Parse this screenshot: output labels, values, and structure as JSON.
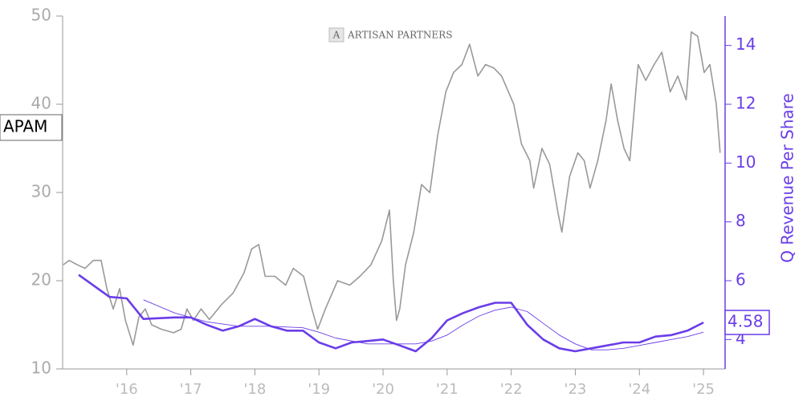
{
  "chart_data": {
    "type": "line",
    "ticker": "APAM",
    "watermark": "ARTISAN PARTNERS",
    "watermark_logo": "A",
    "y2label": "Q Revenue Per Share",
    "xlim": [
      2015.0,
      2025.3
    ],
    "xticks": [
      {
        "value": 2016,
        "label": "'16"
      },
      {
        "value": 2017,
        "label": "'17"
      },
      {
        "value": 2018,
        "label": "'18"
      },
      {
        "value": 2019,
        "label": "'19"
      },
      {
        "value": 2020,
        "label": "'20"
      },
      {
        "value": 2021,
        "label": "'21"
      },
      {
        "value": 2022,
        "label": "'22"
      },
      {
        "value": 2023,
        "label": "'23"
      },
      {
        "value": 2024,
        "label": "'24"
      },
      {
        "value": 2025,
        "label": "'25"
      }
    ],
    "ylim": [
      10,
      50
    ],
    "yticks": [
      10,
      20,
      30,
      40,
      50
    ],
    "y2lim": [
      3,
      15
    ],
    "y2ticks": [
      4,
      6,
      8,
      10,
      12,
      14
    ],
    "series": [
      {
        "color": "#999999",
        "linewidth": 1.6,
        "x": [
          2015.01,
          2015.1,
          2015.23,
          2015.35,
          2015.48,
          2015.6,
          2015.69,
          2015.79,
          2015.89,
          2015.98,
          2016.1,
          2016.19,
          2016.29,
          2016.39,
          2016.54,
          2016.73,
          2016.85,
          2016.94,
          2017.04,
          2017.16,
          2017.29,
          2017.48,
          2017.66,
          2017.83,
          2017.95,
          2018.06,
          2018.16,
          2018.31,
          2018.48,
          2018.6,
          2018.76,
          2018.89,
          2018.98,
          2019.1,
          2019.29,
          2019.48,
          2019.64,
          2019.81,
          2019.98,
          2020.1,
          2020.16,
          2020.21,
          2020.26,
          2020.35,
          2020.48,
          2020.6,
          2020.73,
          2020.85,
          2020.98,
          2021.1,
          2021.23,
          2021.35,
          2021.48,
          2021.6,
          2021.73,
          2021.85,
          2022.04,
          2022.16,
          2022.29,
          2022.35,
          2022.48,
          2022.6,
          2022.73,
          2022.79,
          2022.91,
          2023.04,
          2023.14,
          2023.23,
          2023.35,
          2023.48,
          2023.56,
          2023.66,
          2023.76,
          2023.85,
          2023.98,
          2024.1,
          2024.23,
          2024.35,
          2024.48,
          2024.6,
          2024.73,
          2024.81,
          2024.91,
          2025.01,
          2025.1,
          2025.2,
          2025.26
        ],
        "values": [
          21.8,
          22.3,
          21.8,
          21.4,
          22.3,
          22.3,
          19.1,
          16.8,
          19.1,
          15.5,
          12.7,
          15.9,
          16.8,
          15,
          14.5,
          14.1,
          14.5,
          16.8,
          15.5,
          16.8,
          15.6,
          17.3,
          18.6,
          20.9,
          23.6,
          24.1,
          20.5,
          20.5,
          19.5,
          21.4,
          20.5,
          16.8,
          14.5,
          16.8,
          20,
          19.5,
          20.5,
          21.8,
          24.5,
          28,
          20,
          15.5,
          16.8,
          21.8,
          25.5,
          30.9,
          30,
          36.4,
          41.4,
          43.6,
          44.5,
          46.8,
          43.2,
          44.5,
          44.1,
          43.2,
          40,
          35.5,
          33.6,
          30.5,
          35,
          33.2,
          27.7,
          25.5,
          31.8,
          34.5,
          33.6,
          30.5,
          33.6,
          38.2,
          42.3,
          38.2,
          35,
          33.6,
          44.5,
          42.7,
          44.5,
          45.9,
          41.4,
          43.2,
          40.5,
          48.2,
          47.7,
          43.6,
          44.5,
          40,
          34.5
        ]
      },
      {
        "color": "#6a3de8",
        "linewidth": 2.6,
        "axis": "y2",
        "x": [
          2015.25,
          2015.73,
          2016.0,
          2016.26,
          2016.75,
          2017.0,
          2017.25,
          2017.5,
          2017.75,
          2018.0,
          2018.25,
          2018.5,
          2018.75,
          2019.0,
          2019.26,
          2019.51,
          2019.76,
          2020.0,
          2020.26,
          2020.51,
          2020.76,
          2021.0,
          2021.25,
          2021.5,
          2021.75,
          2022.0,
          2022.25,
          2022.5,
          2022.75,
          2023.0,
          2023.25,
          2023.5,
          2023.75,
          2024.0,
          2024.25,
          2024.5,
          2024.75,
          2025.0
        ],
        "values": [
          6.2,
          5.45,
          5.4,
          4.7,
          4.75,
          4.75,
          4.5,
          4.3,
          4.45,
          4.7,
          4.45,
          4.3,
          4.3,
          3.9,
          3.7,
          3.9,
          3.95,
          4.0,
          3.8,
          3.6,
          4.05,
          4.65,
          4.9,
          5.1,
          5.25,
          5.25,
          4.5,
          4.0,
          3.7,
          3.6,
          3.7,
          3.8,
          3.9,
          3.9,
          4.1,
          4.15,
          4.3,
          4.58
        ]
      },
      {
        "color": "#6a3de8",
        "linewidth": 0.9,
        "axis": "y2",
        "x": [
          2016.26,
          2016.75,
          2017.25,
          2017.75,
          2018.25,
          2018.75,
          2019.0,
          2019.26,
          2019.76,
          2020.26,
          2020.51,
          2020.76,
          2021.0,
          2021.25,
          2021.5,
          2021.75,
          2022.0,
          2022.25,
          2022.5,
          2022.75,
          2023.0,
          2023.25,
          2023.5,
          2023.75,
          2024.0,
          2024.25,
          2024.5,
          2024.75,
          2025.0
        ],
        "values": [
          5.35,
          4.9,
          4.6,
          4.45,
          4.45,
          4.4,
          4.25,
          4.05,
          3.85,
          3.85,
          3.85,
          3.95,
          4.15,
          4.5,
          4.8,
          5.0,
          5.1,
          4.95,
          4.55,
          4.15,
          3.85,
          3.65,
          3.65,
          3.7,
          3.8,
          3.9,
          4.0,
          4.1,
          4.25
        ]
      }
    ]
  }
}
